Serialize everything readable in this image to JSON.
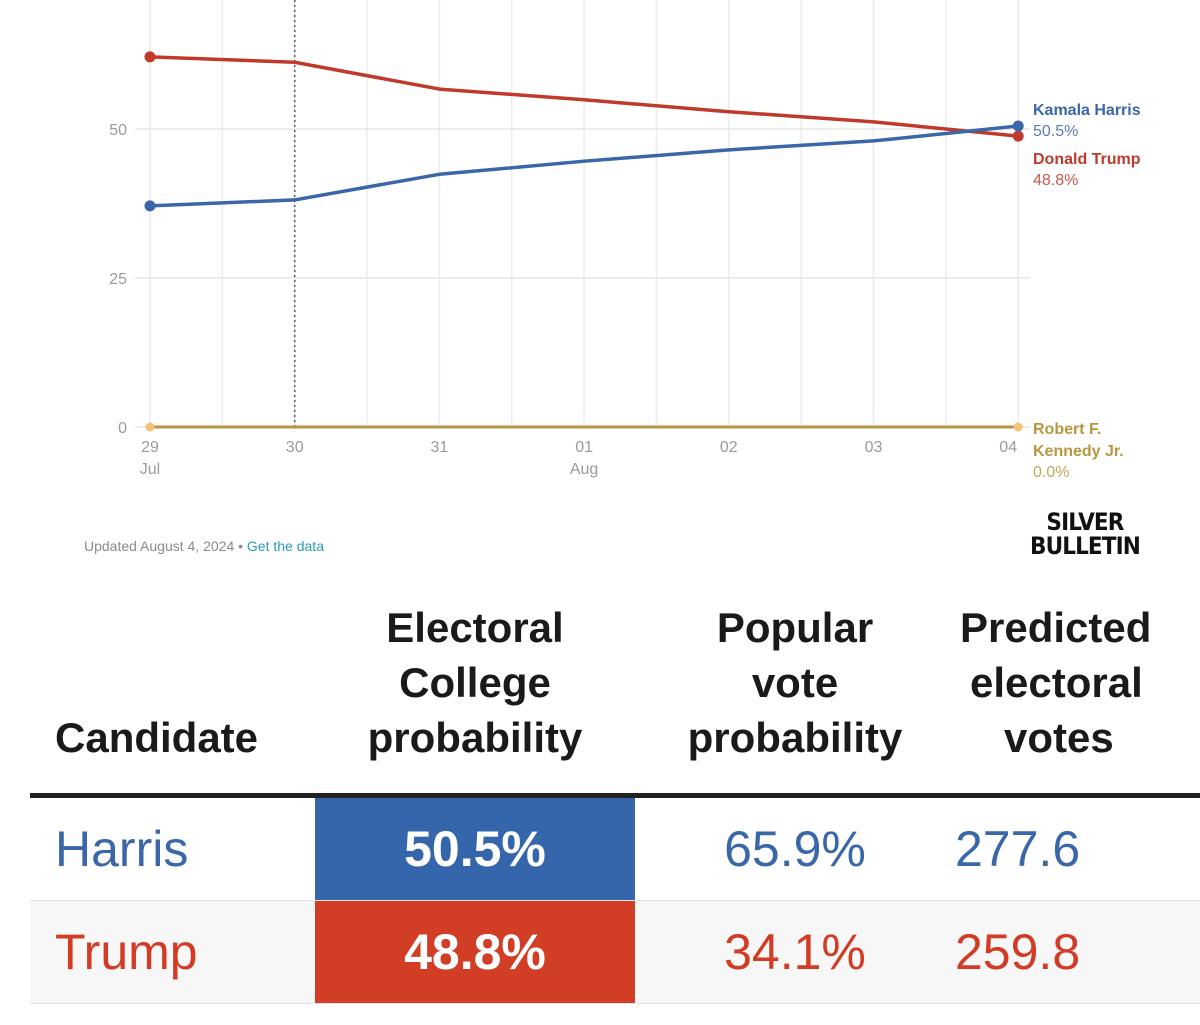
{
  "chart_data": {
    "type": "line",
    "x": [
      "29 Jul",
      "30",
      "31",
      "01 Aug",
      "02",
      "03",
      "04"
    ],
    "x_tick_labels": [
      [
        "29",
        "Jul"
      ],
      [
        "30",
        ""
      ],
      [
        "31",
        ""
      ],
      [
        "01",
        "Aug"
      ],
      [
        "02",
        ""
      ],
      [
        "03",
        ""
      ],
      [
        "04",
        ""
      ]
    ],
    "y_ticks": [
      0,
      25,
      50
    ],
    "ylim": [
      0,
      70
    ],
    "grid": true,
    "marker_date": "30",
    "series": [
      {
        "name": "Kamala Harris",
        "label_lines": [
          "Kamala Harris"
        ],
        "value_label": "50.5%",
        "color": "#3a67a8",
        "values": [
          37.1,
          38.1,
          42.4,
          44.6,
          46.5,
          48.0,
          50.5
        ]
      },
      {
        "name": "Donald Trump",
        "label_lines": [
          "Donald Trump"
        ],
        "value_label": "48.8%",
        "color": "#c0392b",
        "values": [
          62.1,
          61.2,
          56.7,
          54.9,
          52.9,
          51.2,
          48.8
        ]
      },
      {
        "name": "Robert F. Kennedy Jr.",
        "label_lines": [
          "Robert F.",
          "Kennedy Jr."
        ],
        "value_label": "0.0%",
        "color": "#b8963e",
        "values": [
          0,
          0,
          0,
          0,
          0,
          0,
          0
        ]
      }
    ]
  },
  "footer": {
    "updated": "Updated August 4, 2024",
    "separator": " • ",
    "link": "Get the data"
  },
  "logo": {
    "line1": "SILVER",
    "line2": "BULLETIN"
  },
  "table": {
    "headers": {
      "candidate": "Candidate",
      "ec": [
        "Electoral",
        "College",
        "probability"
      ],
      "pv": [
        "Popular",
        "vote",
        "probability"
      ],
      "ev": [
        "Predicted",
        "electoral",
        "votes"
      ]
    },
    "rows": [
      {
        "name": "Harris",
        "ec": "50.5%",
        "pv": "65.9%",
        "ev": "277.6",
        "color": "#3a67a8",
        "ec_bg": "#3566ab"
      },
      {
        "name": "Trump",
        "ec": "48.8%",
        "pv": "34.1%",
        "ev": "259.8",
        "color": "#d23b24",
        "ec_bg": "#d13d25"
      }
    ]
  }
}
